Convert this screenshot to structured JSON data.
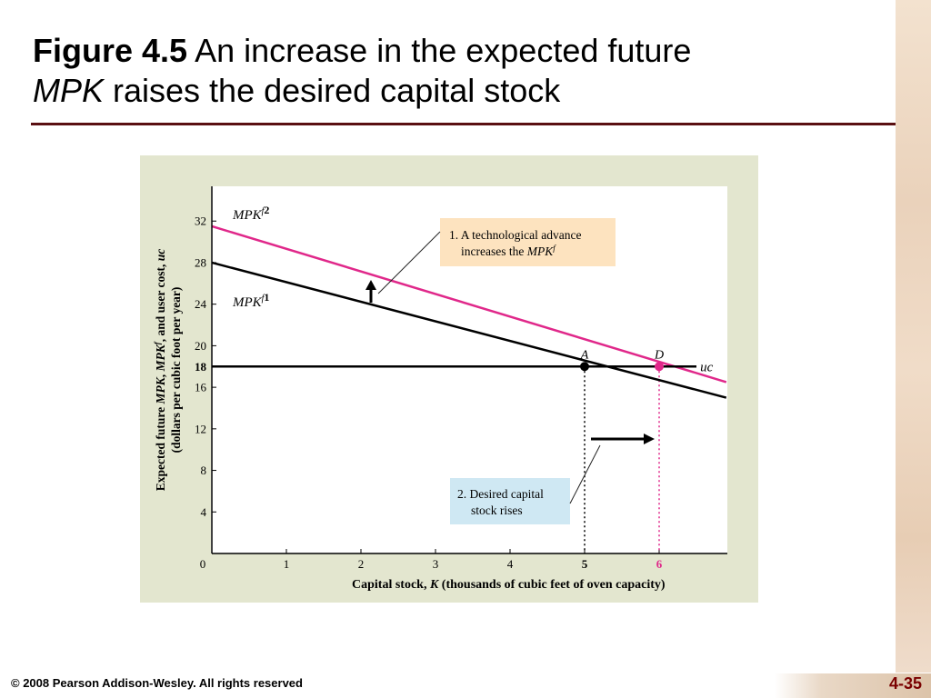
{
  "slide": {
    "title_bold": "Figure 4.5",
    "title_rest_line1": " An increase in the expected future",
    "title_italic_line2": "MPK",
    "title_rest_line2": " raises the desired capital stock",
    "footer_copyright": "© 2008 Pearson Addison-Wesley. All rights reserved",
    "slide_number": "4-35"
  },
  "colors": {
    "title_rule": "#5a0f12",
    "panel_bg": "#e3e6cf",
    "curve_new": "#e0288a",
    "curve_old": "#000000",
    "callout1_bg": "#fde3bf",
    "callout2_bg": "#cfe8f3",
    "slide_number": "#7a0000"
  },
  "chart_data": {
    "type": "line",
    "xlabel_pre": "Capital stock, ",
    "xlabel_var": "K",
    "xlabel_post": " (thousands of cubic feet of oven capacity)",
    "ylabel_line1_pre": "Expected future ",
    "ylabel_line1_var1": "MPK",
    "ylabel_line1_mid": ", ",
    "ylabel_line1_var2": "MPK",
    "ylabel_line1_sup": "f",
    "ylabel_line1_post": ", and user cost, ",
    "ylabel_line1_var3": "uc",
    "ylabel_line2": "(dollars per cubic foot per year)",
    "xlim": [
      0,
      7
    ],
    "ylim": [
      0,
      34
    ],
    "x_ticks": [
      {
        "value": 0,
        "label": "0",
        "bold": false
      },
      {
        "value": 1,
        "label": "1",
        "bold": false
      },
      {
        "value": 2,
        "label": "2",
        "bold": false
      },
      {
        "value": 3,
        "label": "3",
        "bold": false
      },
      {
        "value": 4,
        "label": "4",
        "bold": false
      },
      {
        "value": 5,
        "label": "5",
        "bold": true
      },
      {
        "value": 6,
        "label": "6",
        "bold": true,
        "color": "#e0288a"
      }
    ],
    "y_ticks": [
      {
        "value": 4,
        "label": "4",
        "bold": false
      },
      {
        "value": 8,
        "label": "8",
        "bold": false
      },
      {
        "value": 12,
        "label": "12",
        "bold": false
      },
      {
        "value": 16,
        "label": "16",
        "bold": false
      },
      {
        "value": 18,
        "label": "18",
        "bold": true
      },
      {
        "value": 20,
        "label": "20",
        "bold": false
      },
      {
        "value": 24,
        "label": "24",
        "bold": false
      },
      {
        "value": 28,
        "label": "28",
        "bold": false
      },
      {
        "value": 32,
        "label": "32",
        "bold": false
      }
    ],
    "series": [
      {
        "name_base": "MPK",
        "name_sup": "f",
        "name_sub": "2",
        "color": "#e0288a",
        "x": [
          0,
          6.9
        ],
        "y": [
          31.5,
          16.5
        ]
      },
      {
        "name_base": "MPK",
        "name_sup": "f",
        "name_sub": "1",
        "color": "#000000",
        "x": [
          0,
          6.9
        ],
        "y": [
          28.0,
          15.0
        ]
      },
      {
        "name": "uc",
        "color": "#000000",
        "x": [
          0,
          6.5
        ],
        "y": [
          18,
          18
        ]
      }
    ],
    "points": [
      {
        "label": "A",
        "x": 5,
        "y": 18,
        "color": "#000000"
      },
      {
        "label": "D",
        "x": 6,
        "y": 18,
        "color": "#e0288a"
      }
    ],
    "annotations": {
      "callout1_line1": "1. A technological advance",
      "callout1_line2_pre": "increases the ",
      "callout1_line2_var": "MPK",
      "callout1_line2_sup": "f",
      "callout2_line1": "2. Desired capital",
      "callout2_line2": "stock rises"
    }
  }
}
